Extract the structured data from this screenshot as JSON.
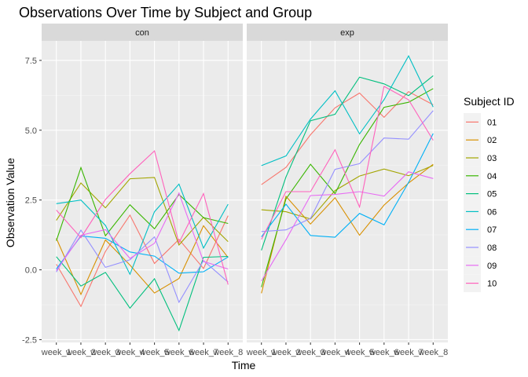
{
  "chart_data": {
    "type": "line",
    "title": "Observations Over Time by Subject and Group",
    "xlabel": "Time",
    "ylabel": "Observation Value",
    "categories": [
      "week_1",
      "week_2",
      "week_3",
      "week_4",
      "week_5",
      "week_6",
      "week_7",
      "week_8"
    ],
    "ylim": [
      -2.6,
      8.2
    ],
    "yticks": [
      -2.5,
      0.0,
      2.5,
      5.0,
      7.5
    ],
    "ytick_labels": [
      "-2.5",
      "0.0",
      "2.5",
      "5.0",
      "7.5"
    ],
    "legend": {
      "title": "Subject ID",
      "position": "right"
    },
    "grid": true,
    "panels": [
      {
        "name": "con",
        "series": [
          {
            "name": "01",
            "color": "#F8766D",
            "values": [
              0.2,
              -1.31,
              0.66,
              1.96,
              0.23,
              1.09,
              0.05,
              1.94
            ]
          },
          {
            "name": "02",
            "color": "#D89000",
            "values": [
              1.13,
              -0.88,
              1.07,
              0.17,
              -0.83,
              -0.31,
              1.58,
              0.44
            ]
          },
          {
            "name": "03",
            "color": "#A3A500",
            "values": [
              1.77,
              3.11,
              2.22,
              3.26,
              3.31,
              0.89,
              1.88,
              1.01
            ]
          },
          {
            "name": "04",
            "color": "#39B600",
            "values": [
              1.04,
              3.66,
              1.22,
              2.33,
              1.47,
              2.7,
              1.87,
              1.66
            ]
          },
          {
            "name": "05",
            "color": "#00BF7D",
            "values": [
              0.47,
              -0.58,
              -0.09,
              -1.37,
              -0.32,
              -2.17,
              0.45,
              0.48
            ]
          },
          {
            "name": "06",
            "color": "#00BFC4",
            "values": [
              2.37,
              2.5,
              1.59,
              -0.16,
              2.08,
              3.07,
              0.78,
              2.35
            ]
          },
          {
            "name": "07",
            "color": "#00B0F6",
            "values": [
              0.03,
              1.21,
              1.13,
              0.64,
              0.49,
              -0.12,
              -0.07,
              0.46
            ]
          },
          {
            "name": "08",
            "color": "#9590FF",
            "values": [
              -0.08,
              1.42,
              0.09,
              0.36,
              1.18,
              -1.16,
              0.33,
              -0.44
            ]
          },
          {
            "name": "09",
            "color": "#E76BF3",
            "values": [
              -0.03,
              1.24,
              1.44,
              0.41,
              0.95,
              2.75,
              0.3,
              0.03
            ]
          },
          {
            "name": "10",
            "color": "#FF62BC",
            "values": [
              2.14,
              1.15,
              2.52,
              3.44,
              4.26,
              0.97,
              2.73,
              -0.53
            ]
          }
        ]
      },
      {
        "name": "exp",
        "series": [
          {
            "name": "01",
            "color": "#F8766D",
            "values": [
              3.05,
              3.67,
              4.84,
              5.8,
              6.33,
              5.46,
              6.38,
              5.91
            ]
          },
          {
            "name": "02",
            "color": "#D89000",
            "values": [
              -0.84,
              2.63,
              1.64,
              2.58,
              1.24,
              2.32,
              3.11,
              3.78
            ]
          },
          {
            "name": "03",
            "color": "#A3A500",
            "values": [
              2.15,
              2.08,
              1.82,
              2.84,
              3.36,
              3.61,
              3.37,
              3.74
            ]
          },
          {
            "name": "04",
            "color": "#39B600",
            "values": [
              -0.62,
              2.54,
              3.78,
              2.73,
              4.49,
              5.82,
              6.0,
              6.49
            ]
          },
          {
            "name": "05",
            "color": "#00BF7D",
            "values": [
              0.7,
              3.33,
              5.34,
              5.57,
              6.9,
              6.66,
              6.24,
              6.95
            ]
          },
          {
            "name": "06",
            "color": "#00BFC4",
            "values": [
              3.73,
              4.08,
              5.4,
              6.41,
              4.87,
              6.09,
              7.66,
              5.83
            ]
          },
          {
            "name": "07",
            "color": "#00B0F6",
            "values": [
              1.18,
              2.35,
              1.23,
              1.17,
              2.02,
              1.61,
              3.13,
              4.88
            ]
          },
          {
            "name": "08",
            "color": "#9590FF",
            "values": [
              1.37,
              1.43,
              1.84,
              3.6,
              3.8,
              4.72,
              4.68,
              5.7
            ]
          },
          {
            "name": "09",
            "color": "#E76BF3",
            "values": [
              -0.4,
              1.08,
              2.66,
              2.7,
              2.8,
              2.64,
              3.51,
              3.27
            ]
          },
          {
            "name": "10",
            "color": "#FF62BC",
            "values": [
              1.09,
              2.8,
              2.8,
              4.3,
              2.25,
              6.57,
              6.09,
              4.64
            ]
          }
        ]
      }
    ]
  }
}
